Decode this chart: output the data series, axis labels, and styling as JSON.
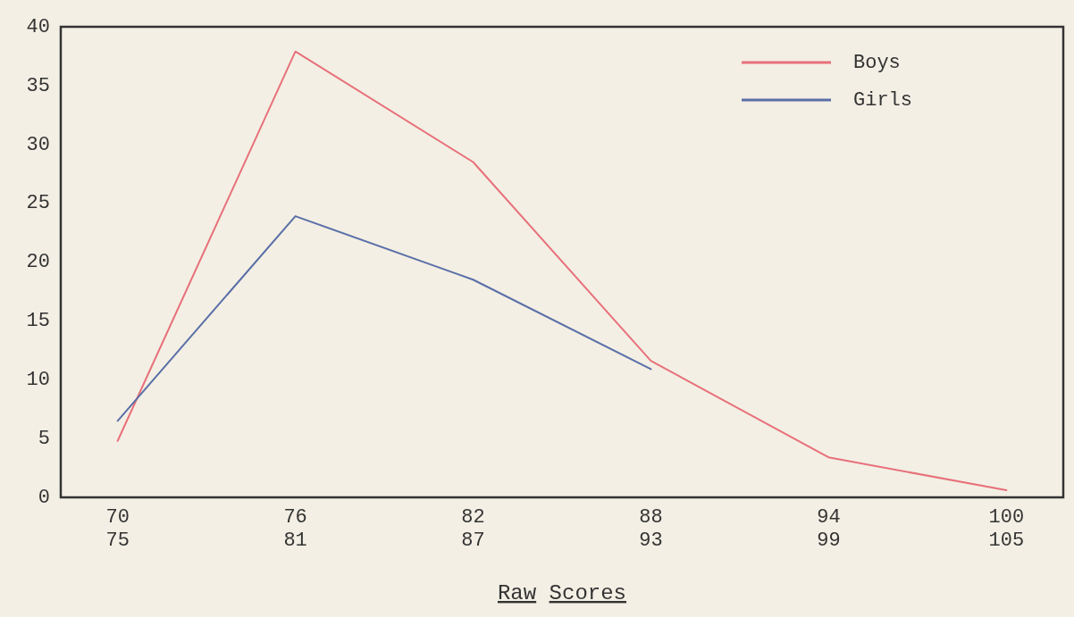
{
  "chart_data": {
    "type": "line",
    "xlabel": "Raw Scores",
    "categories": [
      "70\n75",
      "76\n81",
      "82\n87",
      "88\n93",
      "94\n99",
      "100\n105"
    ],
    "ylim": [
      0,
      40
    ],
    "yticks": [
      0,
      5,
      10,
      15,
      20,
      25,
      30,
      35,
      40
    ],
    "series": [
      {
        "name": "Boys",
        "color": "#e8707a",
        "values": [
          4.8,
          37.9,
          28.5,
          11.6,
          3.4,
          0.6
        ]
      },
      {
        "name": "Girls",
        "color": "#5a6fa8",
        "values": [
          6.5,
          23.9,
          18.5,
          10.9,
          null,
          null
        ]
      }
    ],
    "legend": "top right",
    "grid": false,
    "marker": "none",
    "line_style": "solid"
  }
}
